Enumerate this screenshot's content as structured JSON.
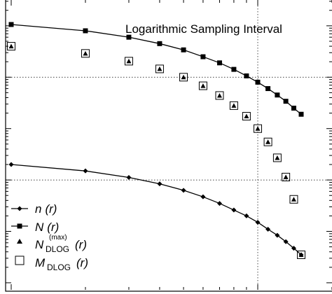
{
  "chart_data": {
    "type": "line",
    "title": "Logarithmic Sampling Interval",
    "xlabel": "",
    "ylabel": "",
    "xscale": "log",
    "yscale": "log",
    "x_decades": [
      1,
      2
    ],
    "y_decades": [
      -2,
      0
    ],
    "grid": "dotted reference lines at one x decade and two y decades",
    "legend": "bottom-left",
    "series": [
      {
        "name": "n (r)",
        "marker": "diamond",
        "line": true,
        "x": [
          1,
          2,
          3,
          4,
          5,
          6,
          7,
          8,
          9,
          10,
          11,
          12,
          13,
          14,
          15
        ],
        "y": [
          0.02,
          0.015,
          0.0112,
          0.0084,
          0.0063,
          0.0047,
          0.0035,
          0.0026,
          0.002,
          0.0015,
          0.0011,
          0.00084,
          0.00063,
          0.00047,
          0.00035
        ]
      },
      {
        "name": "N (r)",
        "marker": "square",
        "line": true,
        "x": [
          1,
          2,
          3,
          4,
          5,
          6,
          7,
          8,
          9,
          10,
          11,
          12,
          13,
          14,
          15
        ],
        "y": [
          10.6,
          8.0,
          6.0,
          4.5,
          3.4,
          2.5,
          1.9,
          1.42,
          1.06,
          0.8,
          0.6,
          0.45,
          0.34,
          0.25,
          0.19
        ]
      },
      {
        "name": "max DLOG",
        "marker": "triangle",
        "line": false,
        "x": [
          1,
          2,
          3,
          4,
          5,
          6,
          7,
          8,
          9,
          10,
          11,
          12,
          13,
          14,
          15
        ],
        "y": [
          4.0,
          2.9,
          2.05,
          1.45,
          1.0,
          0.68,
          0.44,
          0.28,
          0.174,
          0.1,
          0.055,
          0.027,
          0.0114,
          0.0042,
          0.00035
        ]
      },
      {
        "name": "M DLOG",
        "marker": "open-square",
        "line": false,
        "x": [
          1,
          2,
          3,
          4,
          5,
          6,
          7,
          8,
          9,
          10,
          11,
          12,
          13,
          14,
          15
        ],
        "y": [
          4.0,
          2.9,
          2.05,
          1.45,
          1.0,
          0.68,
          0.44,
          0.28,
          0.174,
          0.1,
          0.055,
          0.027,
          0.0114,
          0.0042,
          0.00035
        ]
      }
    ]
  },
  "legend": {
    "n": {
      "main": "n",
      "arg": "(r)"
    },
    "N": {
      "main": "N",
      "arg": "(r)"
    },
    "Nmax": {
      "main": "N",
      "sup": "(max)",
      "sub": "DLOG",
      "arg": "(r)"
    },
    "M": {
      "main": "M",
      "sub": "DLOG",
      "arg": "(r)"
    }
  }
}
